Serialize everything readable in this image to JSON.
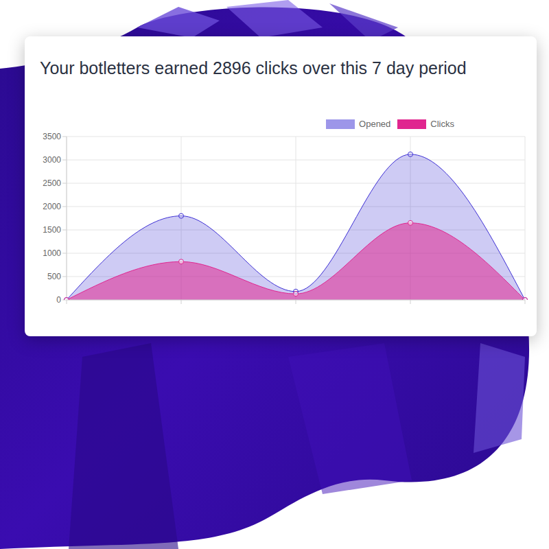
{
  "chart_data": {
    "type": "area",
    "title": "Your botletters earned 2896 clicks over this 7 day period",
    "categories": [
      null,
      null,
      null,
      null,
      null
    ],
    "series": [
      {
        "name": "Opened",
        "color": "#3d2fd4",
        "values": [
          0,
          1800,
          180,
          3120,
          0
        ]
      },
      {
        "name": "Clicks",
        "color": "#e0268f",
        "values": [
          0,
          820,
          130,
          1650,
          0
        ]
      }
    ],
    "ylim": [
      0,
      3500
    ],
    "yticks": [
      0,
      500,
      1000,
      1500,
      2000,
      2500,
      3000,
      3500
    ],
    "grid": true,
    "legend": "top-right",
    "marker": "circle"
  }
}
